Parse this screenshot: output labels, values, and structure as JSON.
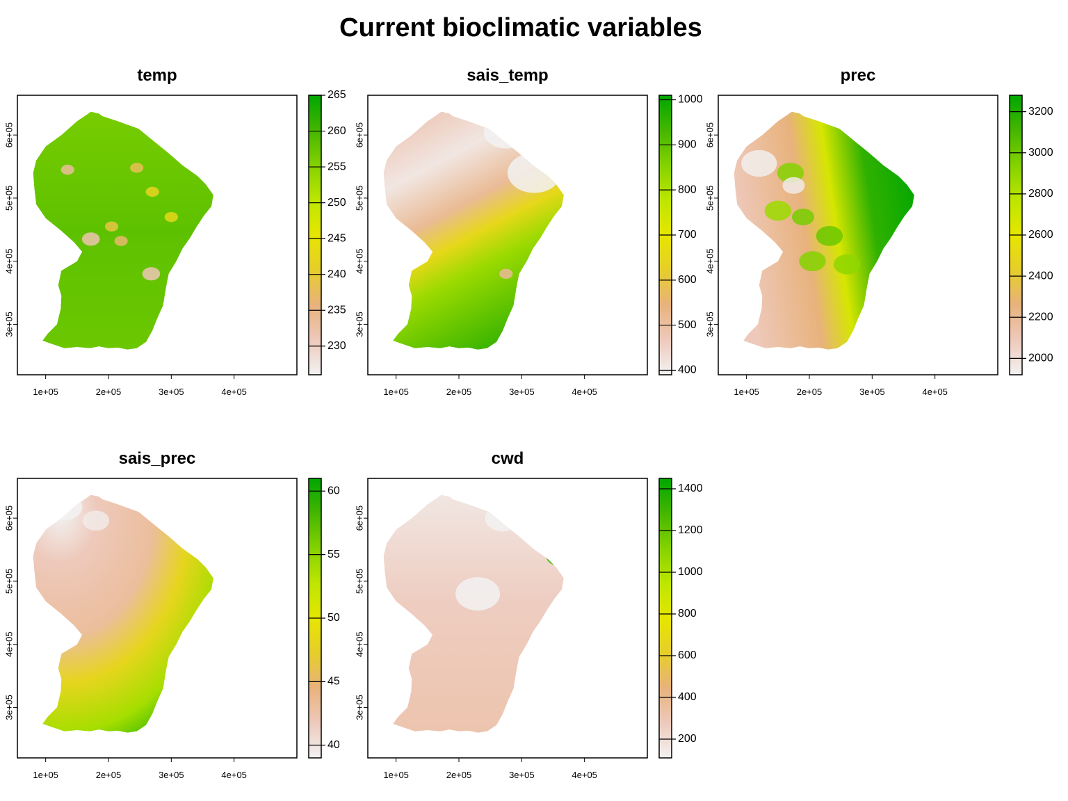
{
  "title": "Current bioclimatic variables",
  "colors": {
    "ramp": [
      "#F2F2F2",
      "#EEC9BB",
      "#E8B27C",
      "#E6CE2A",
      "#E6E600",
      "#BDE600",
      "#84D200",
      "#45B600",
      "#00A600"
    ]
  },
  "chart_data": [
    {
      "type": "heatmap",
      "title": "temp",
      "x_ticks": [
        "1e+05",
        "2e+05",
        "3e+05",
        "4e+05"
      ],
      "y_ticks": [
        "3e+05",
        "4e+05",
        "5e+05",
        "6e+05"
      ],
      "legend": {
        "ticks": [
          "230",
          "235",
          "240",
          "245",
          "250",
          "255",
          "260",
          "265"
        ],
        "min": 226,
        "max": 265
      }
    },
    {
      "type": "heatmap",
      "title": "sais_temp",
      "x_ticks": [
        "1e+05",
        "2e+05",
        "3e+05",
        "4e+05"
      ],
      "y_ticks": [
        "3e+05",
        "4e+05",
        "5e+05",
        "6e+05"
      ],
      "legend": {
        "ticks": [
          "400",
          "500",
          "600",
          "700",
          "800",
          "900",
          "1000"
        ],
        "min": 390,
        "max": 1010
      }
    },
    {
      "type": "heatmap",
      "title": "prec",
      "x_ticks": [
        "1e+05",
        "2e+05",
        "3e+05",
        "4e+05"
      ],
      "y_ticks": [
        "3e+05",
        "4e+05",
        "5e+05",
        "6e+05"
      ],
      "legend": {
        "ticks": [
          "2000",
          "2200",
          "2400",
          "2600",
          "2800",
          "3000",
          "3200"
        ],
        "min": 1920,
        "max": 3280
      }
    },
    {
      "type": "heatmap",
      "title": "sais_prec",
      "x_ticks": [
        "1e+05",
        "2e+05",
        "3e+05",
        "4e+05"
      ],
      "y_ticks": [
        "3e+05",
        "4e+05",
        "5e+05",
        "6e+05"
      ],
      "legend": {
        "ticks": [
          "40",
          "45",
          "50",
          "55",
          "60"
        ],
        "min": 39,
        "max": 61
      }
    },
    {
      "type": "heatmap",
      "title": "cwd",
      "x_ticks": [
        "1e+05",
        "2e+05",
        "3e+05",
        "4e+05"
      ],
      "y_ticks": [
        "3e+05",
        "4e+05",
        "5e+05",
        "6e+05"
      ],
      "legend": {
        "ticks": [
          "200",
          "400",
          "600",
          "800",
          "1000",
          "1200",
          "1400"
        ],
        "min": 110,
        "max": 1450
      }
    }
  ]
}
